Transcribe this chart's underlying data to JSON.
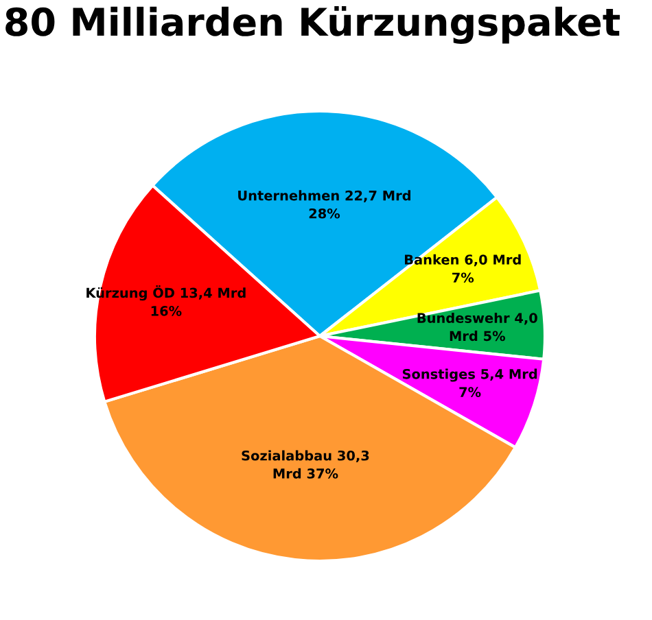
{
  "chart_data": {
    "type": "pie",
    "title": "80 Milliarden Kürzungspaket",
    "categories": [
      "Unternehmen",
      "Banken",
      "Bundeswehr",
      "Sonstiges",
      "Sozialabbau",
      "Kürzung ÖD"
    ],
    "values": [
      22.7,
      6.0,
      4.0,
      5.4,
      30.3,
      13.4
    ],
    "value_labels": [
      "22,7 Mrd\n28%",
      "6,0 Mrd\n7%",
      "4,0\nMrd 5%",
      "5,4 Mrd\n7%",
      "30,3\nMrd 37%",
      "13,4 Mrd\n16%"
    ],
    "colors": [
      "#00b0f0",
      "#ffff00",
      "#00b050",
      "#ff00ff",
      "#ff9933",
      "#ff0000"
    ],
    "legend": false
  }
}
